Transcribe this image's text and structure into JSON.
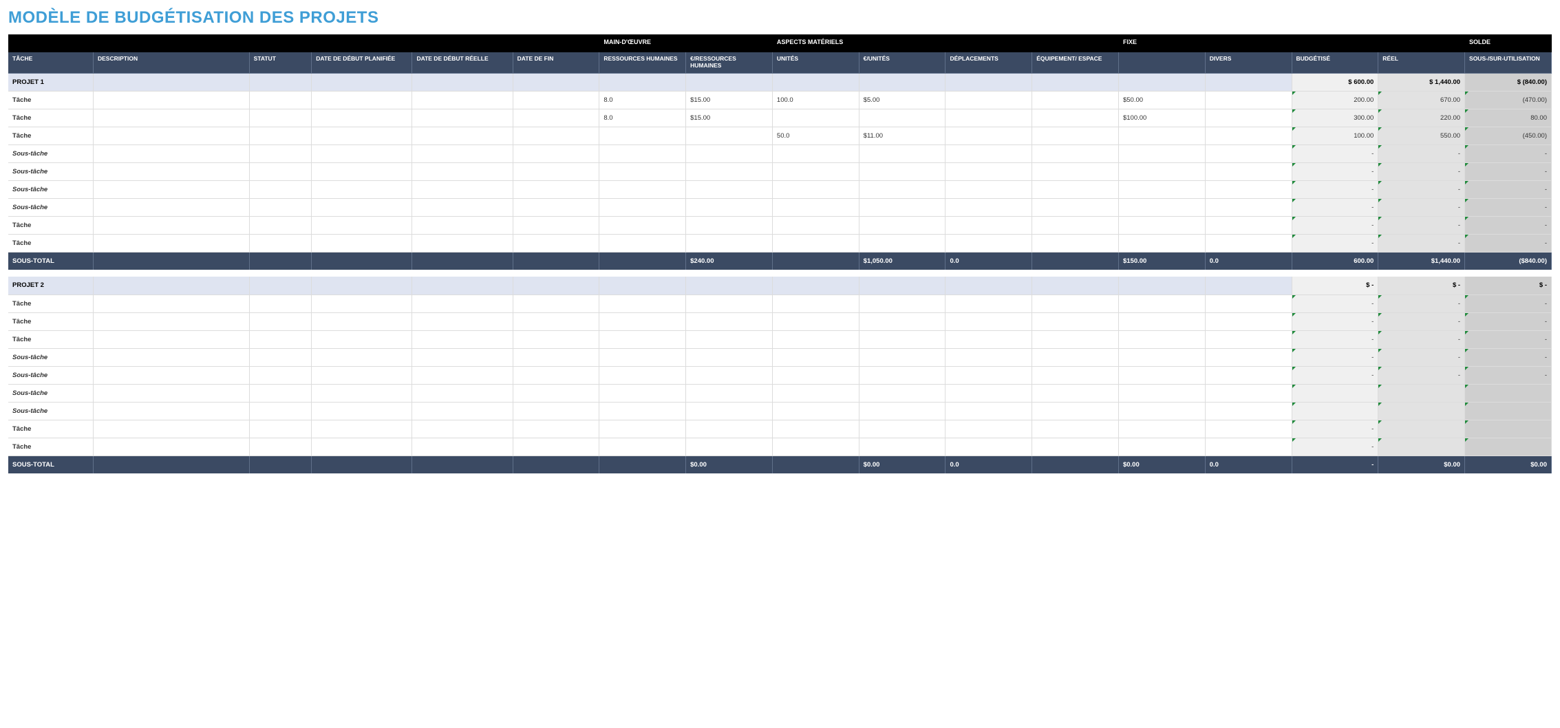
{
  "colors": {
    "title": "#3f9ed6",
    "group_bg": "#000000",
    "colhdr_bg": "#3b4a63",
    "project_bg": "#dfe4f1",
    "subtotal_bg": "#3b4a63",
    "calc_a": "#f0f0f0",
    "calc_b": "#e2e2e2",
    "calc_c": "#cfcfcf",
    "border": "#dcdcdc"
  },
  "title": "MODÈLE DE BUDGÉTISATION DES PROJETS",
  "group_headers": {
    "main_doeuvre": "MAIN-D'ŒUVRE",
    "aspects_materiels": "ASPECTS MATÉRIELS",
    "fixe": "FIXE",
    "solde": "SOLDE"
  },
  "columns": [
    "TÂCHE",
    "DESCRIPTION",
    "STATUT",
    "DATE DE DÉBUT PLANIFIÉE",
    "DATE DE DÉBUT RÉELLE",
    "DATE DE FIN",
    "RESSOURCES HUMAINES",
    "€/RESSOURCES HUMAINES",
    "UNITÉS",
    "€/UNITÉS",
    "DÉPLACEMENTS",
    "ÉQUIPEMENT/ ESPACE",
    "",
    "DIVERS",
    "BUDGÉTISÉ",
    "RÉEL",
    "SOUS-/SUR-UTILISATION"
  ],
  "labels": {
    "task": "Tâche",
    "subtask": "Sous-tâche",
    "subtotal": "SOUS-TOTAL"
  },
  "projects": [
    {
      "name": "PROJET 1",
      "header_totals": {
        "budget": "$          600.00",
        "reel": "$       1,440.00",
        "solde": "$         (840.00)"
      },
      "rows": [
        {
          "type": "task",
          "rh": "8.0",
          "eur_rh": "$15.00",
          "unites": "100.0",
          "eur_unites": "$5.00",
          "fixe": "$50.00",
          "budget": "200.00",
          "reel": "670.00",
          "solde": "(470.00)"
        },
        {
          "type": "task",
          "rh": "8.0",
          "eur_rh": "$15.00",
          "fixe": "$100.00",
          "budget": "300.00",
          "reel": "220.00",
          "solde": "80.00"
        },
        {
          "type": "task",
          "unites": "50.0",
          "eur_unites": "$11.00",
          "budget": "100.00",
          "reel": "550.00",
          "solde": "(450.00)"
        },
        {
          "type": "subtask",
          "budget": "-",
          "reel": "-",
          "solde": "-"
        },
        {
          "type": "subtask",
          "budget": "-",
          "reel": "-",
          "solde": "-"
        },
        {
          "type": "subtask",
          "budget": "-",
          "reel": "-",
          "solde": "-"
        },
        {
          "type": "subtask",
          "budget": "-",
          "reel": "-",
          "solde": "-"
        },
        {
          "type": "task",
          "budget": "-",
          "reel": "-",
          "solde": "-"
        },
        {
          "type": "task",
          "budget": "-",
          "reel": "-",
          "solde": "-"
        }
      ],
      "subtotal": {
        "eur_rh": "$240.00",
        "eur_unites": "$1,050.00",
        "deplacements": "0.0",
        "fixe": "$150.00",
        "divers": "0.0",
        "budget": "600.00",
        "reel": "$1,440.00",
        "solde": "($840.00)"
      }
    },
    {
      "name": "PROJET 2",
      "header_totals": {
        "budget": "$                 -",
        "reel": "$                 -",
        "solde": "$                 -"
      },
      "rows": [
        {
          "type": "task",
          "budget": "-",
          "reel": "-",
          "solde": "-"
        },
        {
          "type": "task",
          "budget": "-",
          "reel": "-",
          "solde": "-"
        },
        {
          "type": "task",
          "budget": "-",
          "reel": "-",
          "solde": "-"
        },
        {
          "type": "subtask",
          "budget": "-",
          "reel": "-",
          "solde": "-"
        },
        {
          "type": "subtask",
          "budget": "-",
          "reel": "-",
          "solde": "-"
        },
        {
          "type": "subtask"
        },
        {
          "type": "subtask"
        },
        {
          "type": "task",
          "budget": "-"
        },
        {
          "type": "task",
          "budget": "-"
        }
      ],
      "subtotal": {
        "eur_rh": "$0.00",
        "eur_unites": "$0.00",
        "deplacements": "0.0",
        "fixe": "$0.00",
        "divers": "0.0",
        "budget": "-",
        "reel": "$0.00",
        "solde": "$0.00"
      }
    }
  ]
}
